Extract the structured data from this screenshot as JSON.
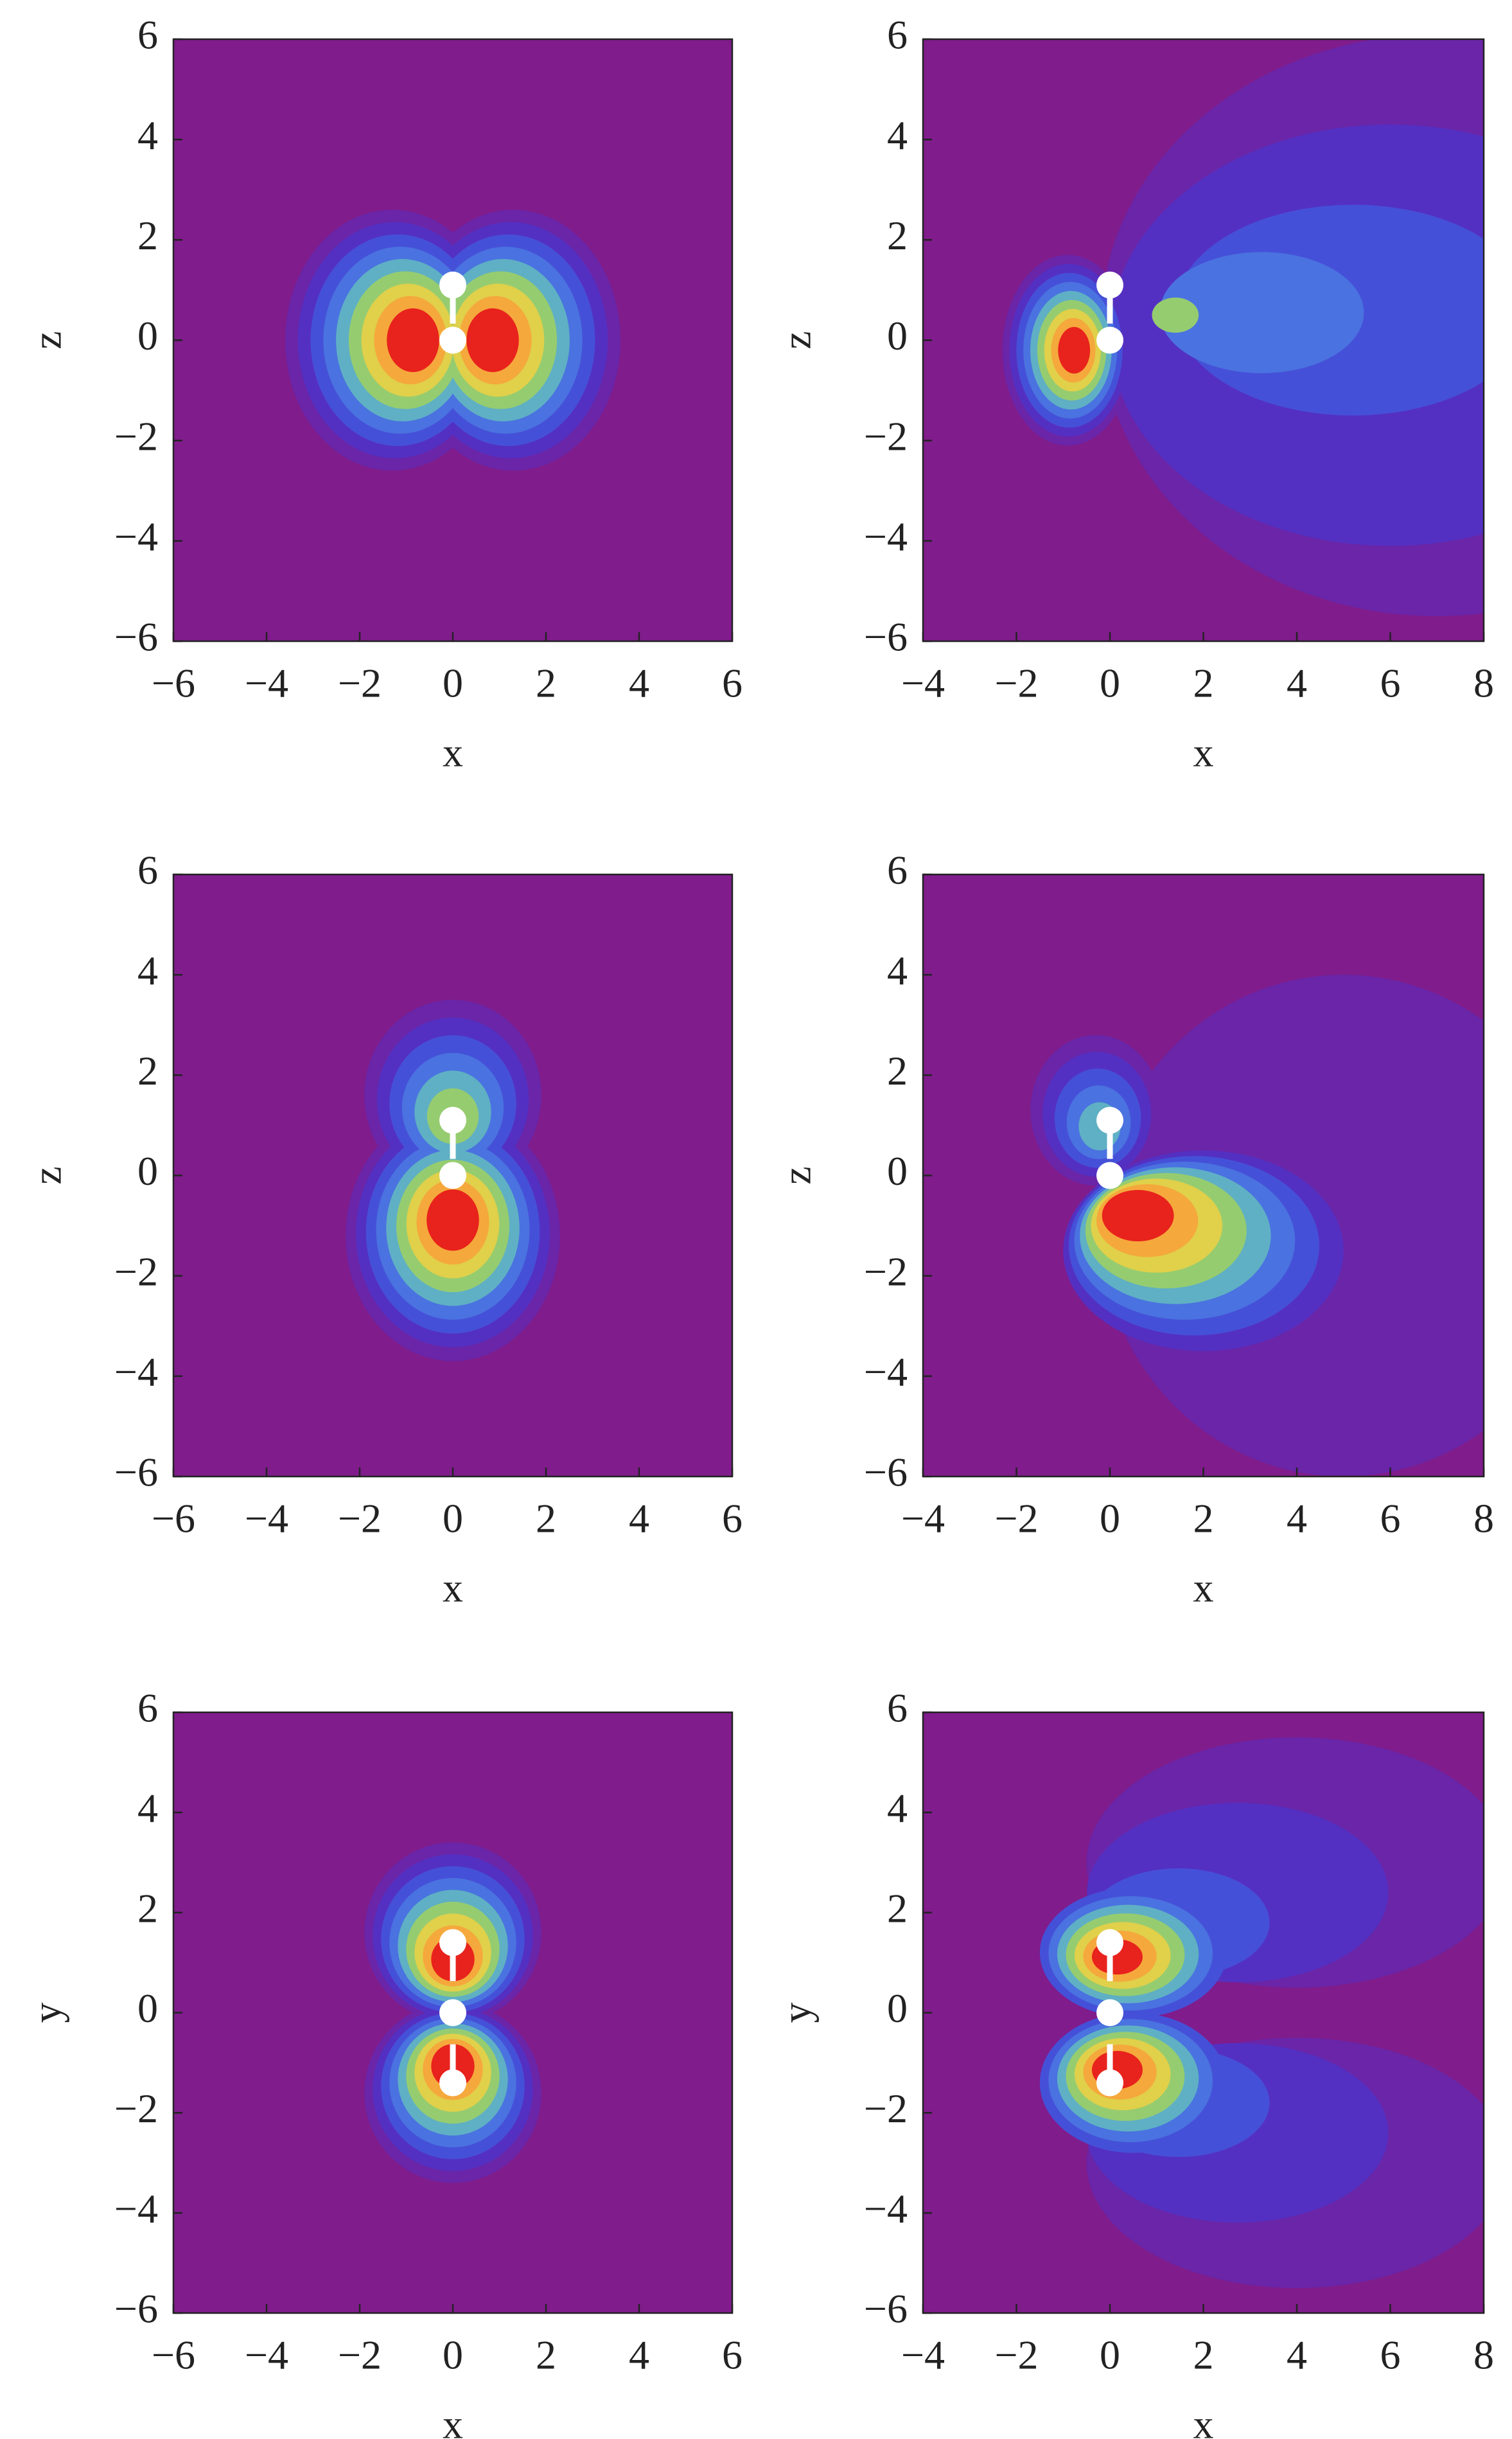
{
  "chart_data": [
    {
      "type": "contour",
      "xlabel": "x",
      "ylabel": "z",
      "xlim": [
        -6,
        6
      ],
      "ylim": [
        -6,
        6
      ],
      "xticks": [
        {
          "value": -6,
          "label": "−6"
        },
        {
          "value": -4,
          "label": "−4"
        },
        {
          "value": -2,
          "label": "−2"
        },
        0,
        2,
        4,
        6
      ],
      "yticks": [
        {
          "value": -6,
          "label": "−6"
        },
        {
          "value": -4,
          "label": "−4"
        },
        {
          "value": -2,
          "label": "−2"
        },
        0,
        2,
        4,
        6
      ],
      "colors": [
        "#801c8c",
        "#6a25a8",
        "#5430c2",
        "#4550d8",
        "#4a72e0",
        "#5fb0c4",
        "#96cc70",
        "#e0d04a",
        "#f5a83c",
        "#e8221c"
      ],
      "markers": {
        "x": [
          0,
          0
        ],
        "y": [
          0,
          1.1
        ]
      }
    },
    {
      "type": "contour",
      "xlabel": "x",
      "ylabel": "z",
      "xlim": [
        -4,
        8
      ],
      "ylim": [
        -6,
        6
      ],
      "xticks": [
        {
          "value": -4,
          "label": "−4"
        },
        {
          "value": -2,
          "label": "−2"
        },
        0,
        2,
        4,
        6,
        8
      ],
      "yticks": [
        {
          "value": -6,
          "label": "−6"
        },
        {
          "value": -4,
          "label": "−4"
        },
        {
          "value": -2,
          "label": "−2"
        },
        0,
        2,
        4,
        6
      ],
      "colors": [
        "#801c8c",
        "#6a25a8",
        "#5430c2",
        "#4550d8",
        "#4a72e0",
        "#5fb0c4",
        "#96cc70",
        "#e0d04a",
        "#f5a83c",
        "#e8221c"
      ],
      "markers": {
        "x": [
          0,
          0
        ],
        "y": [
          0,
          1.1
        ]
      }
    },
    {
      "type": "contour",
      "xlabel": "x",
      "ylabel": "z",
      "xlim": [
        -6,
        6
      ],
      "ylim": [
        -6,
        6
      ],
      "xticks": [
        {
          "value": -6,
          "label": "−6"
        },
        {
          "value": -4,
          "label": "−4"
        },
        {
          "value": -2,
          "label": "−2"
        },
        0,
        2,
        4,
        6
      ],
      "yticks": [
        {
          "value": -6,
          "label": "−6"
        },
        {
          "value": -4,
          "label": "−4"
        },
        {
          "value": -2,
          "label": "−2"
        },
        0,
        2,
        4,
        6
      ],
      "colors": [
        "#801c8c",
        "#6a25a8",
        "#5430c2",
        "#4550d8",
        "#4a72e0",
        "#5fb0c4",
        "#96cc70",
        "#e0d04a",
        "#f5a83c",
        "#e8221c"
      ],
      "markers": {
        "x": [
          0,
          0
        ],
        "y": [
          0,
          1.1
        ]
      }
    },
    {
      "type": "contour",
      "xlabel": "x",
      "ylabel": "z",
      "xlim": [
        -4,
        8
      ],
      "ylim": [
        -6,
        6
      ],
      "xticks": [
        {
          "value": -4,
          "label": "−4"
        },
        {
          "value": -2,
          "label": "−2"
        },
        0,
        2,
        4,
        6,
        8
      ],
      "yticks": [
        {
          "value": -6,
          "label": "−6"
        },
        {
          "value": -4,
          "label": "−4"
        },
        {
          "value": -2,
          "label": "−2"
        },
        0,
        2,
        4,
        6
      ],
      "colors": [
        "#801c8c",
        "#6a25a8",
        "#5430c2",
        "#4550d8",
        "#4a72e0",
        "#5fb0c4",
        "#96cc70",
        "#e0d04a",
        "#f5a83c",
        "#e8221c"
      ],
      "markers": {
        "x": [
          0,
          0
        ],
        "y": [
          0,
          1.1
        ]
      }
    },
    {
      "type": "contour",
      "xlabel": "x",
      "ylabel": "y",
      "xlim": [
        -6,
        6
      ],
      "ylim": [
        -6,
        6
      ],
      "xticks": [
        {
          "value": -6,
          "label": "−6"
        },
        {
          "value": -4,
          "label": "−4"
        },
        {
          "value": -2,
          "label": "−2"
        },
        0,
        2,
        4,
        6
      ],
      "yticks": [
        {
          "value": -6,
          "label": "−6"
        },
        {
          "value": -4,
          "label": "−4"
        },
        {
          "value": -2,
          "label": "−2"
        },
        0,
        2,
        4,
        6
      ],
      "colors": [
        "#801c8c",
        "#6a25a8",
        "#5430c2",
        "#4550d8",
        "#4a72e0",
        "#5fb0c4",
        "#96cc70",
        "#e0d04a",
        "#f5a83c",
        "#e8221c"
      ],
      "markers": {
        "x": [
          0,
          0,
          0
        ],
        "y": [
          0,
          1.4,
          -1.4
        ]
      }
    },
    {
      "type": "contour",
      "xlabel": "x",
      "ylabel": "y",
      "xlim": [
        -4,
        8
      ],
      "ylim": [
        -6,
        6
      ],
      "xticks": [
        {
          "value": -4,
          "label": "−4"
        },
        {
          "value": -2,
          "label": "−2"
        },
        0,
        2,
        4,
        6,
        8
      ],
      "yticks": [
        {
          "value": -6,
          "label": "−6"
        },
        {
          "value": -4,
          "label": "−4"
        },
        {
          "value": -2,
          "label": "−2"
        },
        0,
        2,
        4,
        6
      ],
      "colors": [
        "#801c8c",
        "#6a25a8",
        "#5430c2",
        "#4550d8",
        "#4a72e0",
        "#5fb0c4",
        "#96cc70",
        "#e0d04a",
        "#f5a83c",
        "#e8221c"
      ],
      "markers": {
        "x": [
          0,
          0,
          0
        ],
        "y": [
          0,
          1.4,
          -1.4
        ]
      }
    }
  ]
}
